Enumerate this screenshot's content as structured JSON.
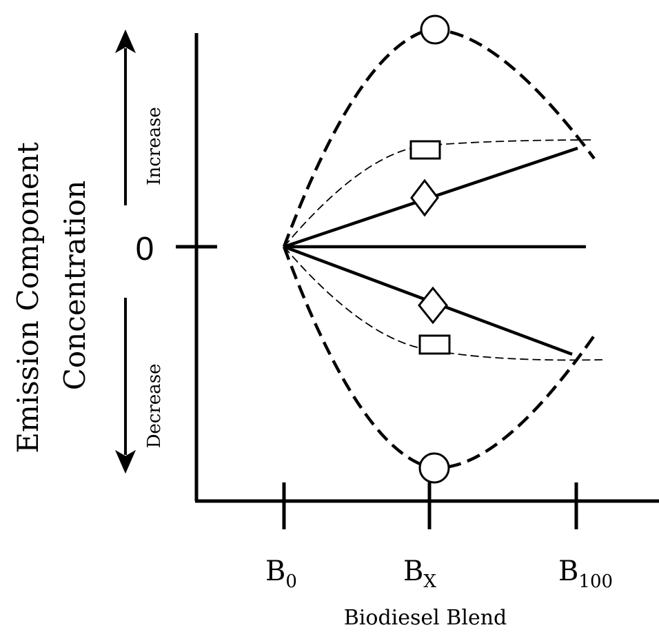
{
  "axis": {
    "y_label_line1": "Emission Component",
    "y_label_line2": "Concentration",
    "x_label": "Biodiesel Blend",
    "zero_label": "0",
    "increase_label": "Increase",
    "decrease_label": "Decrease"
  },
  "ticks": [
    {
      "base": "B",
      "sub": "0"
    },
    {
      "base": "B",
      "sub": "X"
    },
    {
      "base": "B",
      "sub": "100"
    }
  ],
  "colors": {
    "ink": "#000000",
    "background": "#ffffff"
  }
}
